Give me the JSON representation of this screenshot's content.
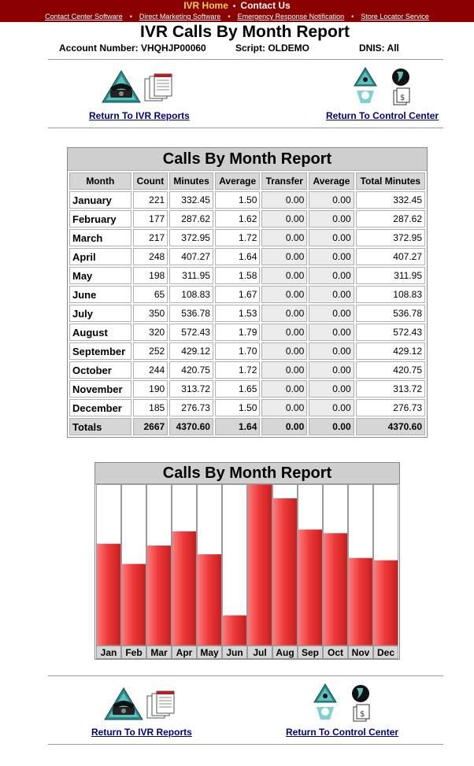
{
  "topnav": {
    "home": "IVR Home",
    "contact": "Contact Us",
    "links": [
      "Contact Center Software",
      "Direct Marketing Software",
      "Emergency Response Notification",
      "Store Locator Service"
    ]
  },
  "header": {
    "title": "IVR Calls By Month Report",
    "account": "Account Number: VHQHJP00060",
    "script": "Script: OLDEMO",
    "dnis": "DNIS: All"
  },
  "nav": {
    "return_ivr": "Return To IVR Reports",
    "return_cc": "Return To Control Center"
  },
  "report": {
    "title": "Calls By Month Report",
    "columns": [
      "Month",
      "Count",
      "Minutes",
      "Average",
      "Transfer",
      "Average",
      "Total Minutes"
    ],
    "rows": [
      [
        "January",
        "221",
        "332.45",
        "1.50",
        "0.00",
        "0.00",
        "332.45"
      ],
      [
        "February",
        "177",
        "287.62",
        "1.62",
        "0.00",
        "0.00",
        "287.62"
      ],
      [
        "March",
        "217",
        "372.95",
        "1.72",
        "0.00",
        "0.00",
        "372.95"
      ],
      [
        "April",
        "248",
        "407.27",
        "1.64",
        "0.00",
        "0.00",
        "407.27"
      ],
      [
        "May",
        "198",
        "311.95",
        "1.58",
        "0.00",
        "0.00",
        "311.95"
      ],
      [
        "June",
        "65",
        "108.83",
        "1.67",
        "0.00",
        "0.00",
        "108.83"
      ],
      [
        "July",
        "350",
        "536.78",
        "1.53",
        "0.00",
        "0.00",
        "536.78"
      ],
      [
        "August",
        "320",
        "572.43",
        "1.79",
        "0.00",
        "0.00",
        "572.43"
      ],
      [
        "September",
        "252",
        "429.12",
        "1.70",
        "0.00",
        "0.00",
        "429.12"
      ],
      [
        "October",
        "244",
        "420.75",
        "1.72",
        "0.00",
        "0.00",
        "420.75"
      ],
      [
        "November",
        "190",
        "313.72",
        "1.65",
        "0.00",
        "0.00",
        "313.72"
      ],
      [
        "December",
        "185",
        "276.73",
        "1.50",
        "0.00",
        "0.00",
        "276.73"
      ]
    ],
    "totals": [
      "Totals",
      "2667",
      "4370.60",
      "1.64",
      "0.00",
      "0.00",
      "4370.60"
    ]
  },
  "chart_data": {
    "type": "bar",
    "title": "Calls By Month Report",
    "categories": [
      "Jan",
      "Feb",
      "Mar",
      "Apr",
      "May",
      "Jun",
      "Jul",
      "Aug",
      "Sep",
      "Oct",
      "Nov",
      "Dec"
    ],
    "values": [
      221,
      177,
      217,
      248,
      198,
      65,
      350,
      320,
      252,
      244,
      190,
      185
    ],
    "ylim": [
      0,
      350
    ],
    "grid": false,
    "bar_color": "#ee3b3b"
  },
  "colors": {
    "topbar": "#8b0000",
    "link": "#000080",
    "header_gray": "#d6d6d6"
  }
}
